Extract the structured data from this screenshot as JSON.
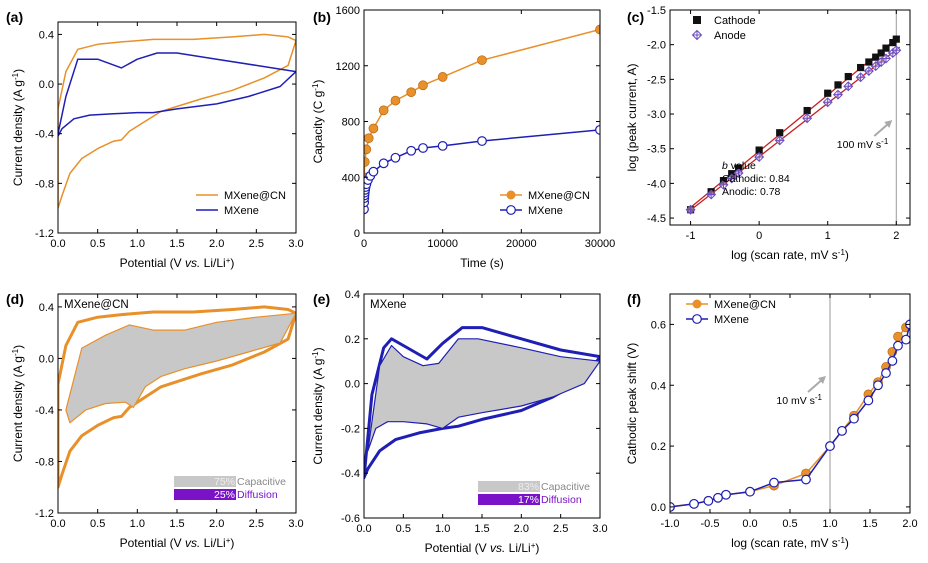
{
  "colors": {
    "orange": "#e8902a",
    "blue": "#1f1fb4",
    "red": "#c81e1e",
    "black": "#111111",
    "purple": "#6a4cc4",
    "diffusion_purple": "#7a12c8",
    "shade": "#c8c8c8",
    "vline": "#9a9a9a"
  },
  "chart_data": [
    {
      "panel": "(a)",
      "type": "line",
      "xlabel": "Potential (V vs. Li/Li+)",
      "ylabel": "Current density (A g-1)",
      "xlim": [
        0,
        3.0
      ],
      "ylim": [
        -1.2,
        0.5
      ],
      "xticks": [
        "0.0",
        "0.5",
        "1.0",
        "1.5",
        "2.0",
        "2.5",
        "3.0"
      ],
      "yticks": [
        "0.4",
        "0.0",
        "-0.4",
        "-0.8",
        "-1.2"
      ],
      "legend": "bottom-right",
      "series": [
        {
          "name": "MXene@CN",
          "color": "orange",
          "closed": true,
          "x": [
            0.0,
            0.1,
            0.25,
            0.5,
            0.8,
            1.2,
            1.7,
            2.2,
            2.6,
            2.9,
            3.0,
            2.9,
            2.6,
            2.2,
            1.8,
            1.3,
            0.9,
            0.8,
            0.7,
            0.5,
            0.3,
            0.15,
            0.05,
            0.0
          ],
          "y": [
            -0.2,
            0.1,
            0.28,
            0.32,
            0.34,
            0.36,
            0.36,
            0.38,
            0.4,
            0.38,
            0.35,
            0.15,
            0.05,
            -0.05,
            -0.12,
            -0.22,
            -0.38,
            -0.45,
            -0.46,
            -0.52,
            -0.6,
            -0.72,
            -0.9,
            -1.0
          ]
        },
        {
          "name": "MXene",
          "color": "blue",
          "closed": true,
          "x": [
            0.0,
            0.1,
            0.25,
            0.5,
            0.8,
            1.0,
            1.25,
            1.5,
            2.0,
            2.5,
            3.0,
            2.8,
            2.4,
            2.0,
            1.5,
            1.2,
            1.0,
            0.7,
            0.4,
            0.2,
            0.05,
            0.0
          ],
          "y": [
            -0.4,
            -0.1,
            0.2,
            0.2,
            0.13,
            0.2,
            0.25,
            0.25,
            0.2,
            0.15,
            0.1,
            -0.02,
            -0.1,
            -0.16,
            -0.2,
            -0.23,
            -0.23,
            -0.24,
            -0.25,
            -0.28,
            -0.36,
            -0.42
          ]
        }
      ]
    },
    {
      "panel": "(b)",
      "type": "scatter",
      "xlabel": "Time (s)",
      "ylabel": "Capacity (C g-1)",
      "xlim": [
        0,
        30000
      ],
      "ylim": [
        0,
        1600
      ],
      "xticks": [
        "0",
        "10000",
        "20000",
        "30000"
      ],
      "yticks": [
        "0",
        "400",
        "800",
        "1200",
        "1600"
      ],
      "legend": "bottom-right",
      "series": [
        {
          "name": "MXene@CN",
          "color": "orange",
          "marker": "filled-circle",
          "x": [
            0,
            100,
            300,
            600,
            1200,
            2500,
            4000,
            6000,
            7500,
            10000,
            15000,
            30000
          ],
          "y": [
            400,
            510,
            600,
            680,
            750,
            880,
            950,
            1010,
            1060,
            1120,
            1240,
            1460
          ]
        },
        {
          "name": "MXene",
          "color": "blue",
          "marker": "open-circle",
          "x": [
            0,
            20,
            40,
            60,
            100,
            150,
            200,
            300,
            500,
            800,
            1200,
            2500,
            4000,
            6000,
            7500,
            10000,
            15000,
            30000
          ],
          "y": [
            170,
            220,
            250,
            270,
            290,
            310,
            330,
            350,
            380,
            410,
            440,
            500,
            540,
            590,
            610,
            625,
            660,
            740
          ]
        }
      ]
    },
    {
      "panel": "(c)",
      "type": "scatter",
      "xlabel": "log (scan rate, mV s-1)",
      "ylabel": "log (peak current, A)",
      "xlim": [
        -1.3,
        2.2
      ],
      "ylim": [
        -4.6,
        -1.5
      ],
      "xticks": [
        "-1",
        "0",
        "1",
        "2"
      ],
      "yticks": [
        "-1.5",
        "-2.0",
        "-2.5",
        "-3.0",
        "-3.5",
        "-4.0",
        "-4.5"
      ],
      "legend": "top-left",
      "vline_x": 2.0,
      "annotation": "100 mV s-1",
      "text_block": [
        "b value",
        "Cathodic: 0.84",
        "Anodic: 0.78"
      ],
      "series": [
        {
          "name": "Cathode",
          "color": "black",
          "marker": "filled-square",
          "fit_color": "red",
          "x": [
            -1.0,
            -0.7,
            -0.52,
            -0.4,
            -0.3,
            0.0,
            0.3,
            0.7,
            1.0,
            1.15,
            1.3,
            1.48,
            1.6,
            1.7,
            1.78,
            1.85,
            1.95,
            2.0
          ],
          "y": [
            -4.38,
            -4.12,
            -3.96,
            -3.86,
            -3.78,
            -3.52,
            -3.27,
            -2.95,
            -2.7,
            -2.58,
            -2.46,
            -2.33,
            -2.25,
            -2.18,
            -2.12,
            -2.05,
            -1.97,
            -1.92
          ]
        },
        {
          "name": "Anode",
          "color": "purple",
          "marker": "crossed-diamond",
          "fit_color": "red",
          "x": [
            -1.0,
            -0.7,
            -0.52,
            -0.4,
            -0.3,
            0.0,
            0.3,
            0.7,
            1.0,
            1.15,
            1.3,
            1.48,
            1.6,
            1.7,
            1.78,
            1.85,
            1.95,
            2.0
          ],
          "y": [
            -4.38,
            -4.16,
            -4.02,
            -3.93,
            -3.85,
            -3.62,
            -3.38,
            -3.06,
            -2.83,
            -2.72,
            -2.6,
            -2.47,
            -2.38,
            -2.31,
            -2.25,
            -2.2,
            -2.12,
            -2.08
          ]
        }
      ]
    },
    {
      "panel": "(d)",
      "type": "area",
      "inset_label": "MXene@CN",
      "xlabel": "Potential (V vs. Li/Li+)",
      "ylabel": "Current density (A g-1)",
      "xlim": [
        0,
        3.0
      ],
      "ylim": [
        -1.2,
        0.5
      ],
      "xticks": [
        "0.0",
        "0.5",
        "1.0",
        "1.5",
        "2.0",
        "2.5",
        "3.0"
      ],
      "yticks": [
        "0.4",
        "0.0",
        "-0.4",
        "-0.8",
        "-1.2"
      ],
      "bars": [
        {
          "percent": "75%",
          "label": "Capacitive",
          "fill": "shade",
          "text_color": "#888888"
        },
        {
          "percent": "25%",
          "label": "Diffusion",
          "fill": "diffusion_purple",
          "text_color": "#7a12c8"
        }
      ],
      "series": [
        {
          "name": "total",
          "color": "orange",
          "closed": true,
          "lw": 3,
          "x": [
            0.0,
            0.1,
            0.25,
            0.5,
            0.8,
            1.2,
            1.7,
            2.2,
            2.6,
            2.9,
            3.0,
            2.9,
            2.6,
            2.2,
            1.8,
            1.3,
            0.9,
            0.8,
            0.7,
            0.5,
            0.3,
            0.15,
            0.05,
            0.0
          ],
          "y": [
            -0.2,
            0.1,
            0.28,
            0.32,
            0.34,
            0.36,
            0.36,
            0.38,
            0.4,
            0.38,
            0.35,
            0.15,
            0.05,
            -0.05,
            -0.12,
            -0.22,
            -0.38,
            -0.45,
            -0.46,
            -0.52,
            -0.6,
            -0.72,
            -0.9,
            -1.0
          ]
        },
        {
          "name": "capacitive",
          "color": "orange",
          "closed": true,
          "lw": 1.2,
          "fill": "shade",
          "x": [
            0.1,
            0.3,
            0.6,
            0.9,
            1.2,
            1.6,
            2.0,
            2.5,
            3.0,
            2.8,
            2.4,
            2.0,
            1.6,
            1.3,
            1.1,
            0.95,
            0.85,
            0.6,
            0.35,
            0.15,
            0.1
          ],
          "y": [
            -0.4,
            0.08,
            0.18,
            0.26,
            0.22,
            0.22,
            0.28,
            0.32,
            0.35,
            0.12,
            0.05,
            -0.02,
            -0.08,
            -0.14,
            -0.22,
            -0.38,
            -0.34,
            -0.35,
            -0.4,
            -0.5,
            -0.4
          ]
        }
      ]
    },
    {
      "panel": "(e)",
      "type": "area",
      "inset_label": "MXene",
      "xlabel": "Potential (V vs. Li/Li+)",
      "ylabel": "Current density (A g-1)",
      "xlim": [
        0,
        3.0
      ],
      "ylim": [
        -0.6,
        0.4
      ],
      "xticks": [
        "0.0",
        "0.5",
        "1.0",
        "1.5",
        "2.0",
        "2.5",
        "3.0"
      ],
      "yticks": [
        "0.4",
        "0.2",
        "0.0",
        "-0.2",
        "-0.4",
        "-0.6"
      ],
      "bars": [
        {
          "percent": "83%",
          "label": "Capacitive",
          "fill": "shade",
          "text_color": "#888888"
        },
        {
          "percent": "17%",
          "label": "Diffusion",
          "fill": "diffusion_purple",
          "text_color": "#7a12c8"
        }
      ],
      "series": [
        {
          "name": "total",
          "color": "blue",
          "closed": true,
          "lw": 3,
          "x": [
            0.0,
            0.1,
            0.25,
            0.35,
            0.5,
            0.8,
            1.0,
            1.25,
            1.5,
            2.0,
            2.5,
            3.0,
            2.8,
            2.4,
            2.0,
            1.5,
            1.2,
            1.0,
            0.7,
            0.4,
            0.2,
            0.05,
            0.0
          ],
          "y": [
            -0.42,
            -0.05,
            0.16,
            0.2,
            0.17,
            0.11,
            0.18,
            0.25,
            0.25,
            0.2,
            0.15,
            0.12,
            0.02,
            -0.06,
            -0.12,
            -0.16,
            -0.19,
            -0.2,
            -0.22,
            -0.25,
            -0.3,
            -0.38,
            -0.42
          ]
        },
        {
          "name": "capacitive",
          "color": "blue",
          "closed": true,
          "lw": 1.2,
          "fill": "shade",
          "x": [
            0.05,
            0.2,
            0.35,
            0.5,
            0.75,
            0.95,
            1.2,
            1.45,
            2.0,
            2.5,
            3.0,
            2.8,
            2.4,
            2.0,
            1.5,
            1.2,
            1.0,
            0.8,
            0.5,
            0.3,
            0.15,
            0.05
          ],
          "y": [
            -0.3,
            0.08,
            0.17,
            0.12,
            0.08,
            0.09,
            0.2,
            0.2,
            0.16,
            0.12,
            0.1,
            0.0,
            -0.06,
            -0.1,
            -0.13,
            -0.15,
            -0.2,
            -0.18,
            -0.17,
            -0.17,
            -0.2,
            -0.3
          ]
        }
      ]
    },
    {
      "panel": "(f)",
      "type": "line",
      "xlabel": "log (scan rate, mV s-1)",
      "ylabel": "Cathodic peak shift (V)",
      "xlim": [
        -1.0,
        2.0
      ],
      "ylim": [
        -0.02,
        0.7
      ],
      "xticks": [
        "-1.0",
        "-0.5",
        "0.0",
        "0.5",
        "1.0",
        "1.5",
        "2.0"
      ],
      "yticks": [
        "0.0",
        "0.2",
        "0.4",
        "0.6"
      ],
      "legend": "top-left",
      "vline_x": 1.0,
      "annotation": "10 mV s-1",
      "series": [
        {
          "name": "MXene@CN",
          "color": "orange",
          "marker": "filled-circle",
          "x": [
            -1.0,
            -0.7,
            -0.52,
            -0.4,
            -0.3,
            0.0,
            0.3,
            0.7,
            1.0,
            1.15,
            1.3,
            1.48,
            1.6,
            1.7,
            1.78,
            1.85,
            1.95,
            2.0
          ],
          "y": [
            0.0,
            0.01,
            0.02,
            0.03,
            0.04,
            0.05,
            0.07,
            0.11,
            0.2,
            0.25,
            0.3,
            0.37,
            0.41,
            0.46,
            0.51,
            0.56,
            0.59,
            0.6
          ]
        },
        {
          "name": "MXene",
          "color": "blue",
          "marker": "open-circle",
          "x": [
            -1.0,
            -0.7,
            -0.52,
            -0.4,
            -0.3,
            0.0,
            0.3,
            0.7,
            1.0,
            1.15,
            1.3,
            1.48,
            1.6,
            1.7,
            1.78,
            1.85,
            1.95,
            2.0
          ],
          "y": [
            0.0,
            0.01,
            0.02,
            0.03,
            0.04,
            0.05,
            0.08,
            0.09,
            0.2,
            0.25,
            0.29,
            0.35,
            0.4,
            0.44,
            0.48,
            0.53,
            0.55,
            0.6
          ]
        }
      ]
    }
  ]
}
